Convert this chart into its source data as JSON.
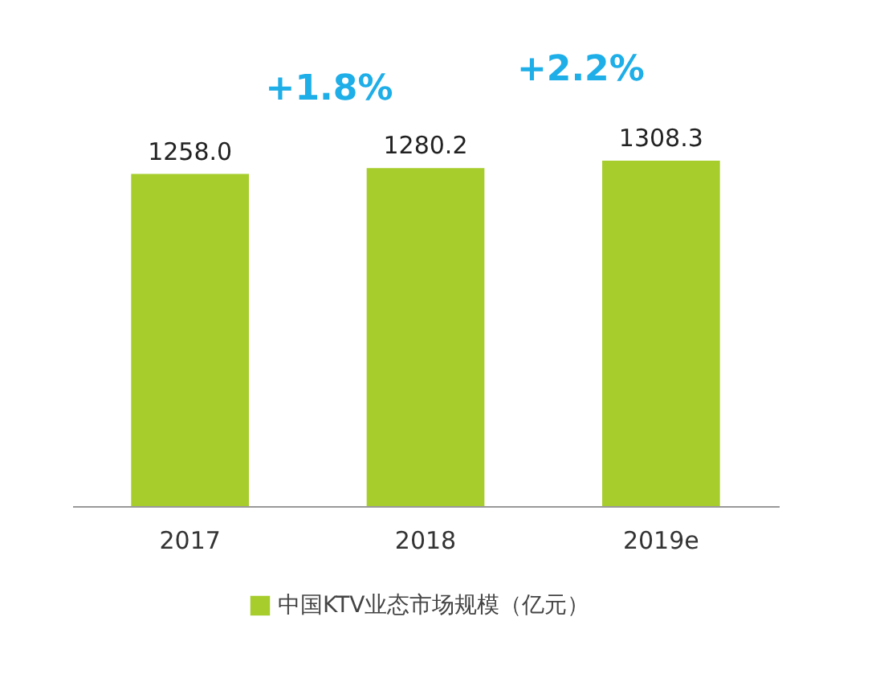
{
  "chart_data": {
    "type": "bar",
    "categories": [
      "2017",
      "2018",
      "2019e"
    ],
    "series": [
      {
        "name": "中国KTV业态市场规模（亿元）",
        "color": "#a6cd2c",
        "values": [
          1258.0,
          1280.2,
          1308.3
        ],
        "value_labels": [
          "1258.0",
          "1280.2",
          "1308.3"
        ]
      }
    ],
    "tick_labels": "x",
    "grid": false,
    "legend": "bottom",
    "annotations": [
      "+1.8%",
      "+2.2%"
    ]
  }
}
